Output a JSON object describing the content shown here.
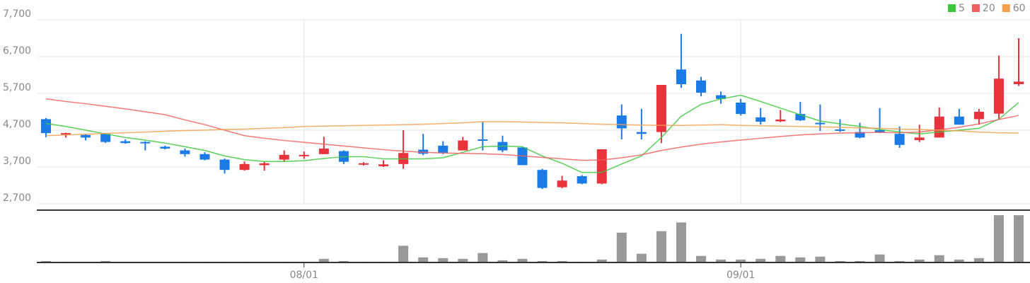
{
  "chart_data": {
    "type": "candlestick",
    "categories": [
      null,
      null,
      null,
      null,
      null,
      null,
      null,
      null,
      null,
      null,
      null,
      null,
      null,
      "08/01",
      null,
      null,
      null,
      null,
      null,
      null,
      null,
      null,
      null,
      null,
      null,
      null,
      null,
      null,
      null,
      null,
      null,
      null,
      null,
      null,
      null,
      "09/01",
      null,
      null,
      null,
      null,
      null,
      null,
      null,
      null,
      null,
      null,
      null,
      null,
      null,
      null
    ],
    "open": [
      5000,
      4580,
      4570,
      4600,
      4400,
      4380,
      4250,
      4150,
      4050,
      3900,
      3620,
      3750,
      3900,
      4000,
      4050,
      4130,
      3770,
      3720,
      3780,
      4170,
      4280,
      4150,
      4450,
      4380,
      4230,
      3620,
      3150,
      3450,
      3250,
      5100,
      4650,
      4650,
      6350,
      6050,
      5650,
      5450,
      5050,
      4940,
      5140,
      4900,
      4720,
      4650,
      4700,
      4600,
      4430,
      4500,
      5070,
      5000,
      5150,
      5950
    ],
    "high": [
      5030,
      4630,
      4600,
      4620,
      4450,
      4400,
      4280,
      4200,
      4100,
      3930,
      3850,
      3850,
      4150,
      4120,
      4520,
      4150,
      3830,
      3880,
      4700,
      4600,
      4400,
      4520,
      4930,
      4550,
      4250,
      3650,
      3460,
      3480,
      4180,
      5400,
      5280,
      5930,
      7320,
      6150,
      5750,
      5550,
      5300,
      5250,
      5470,
      5400,
      5000,
      4900,
      5300,
      4800,
      4850,
      5320,
      5280,
      5280,
      6730,
      7200
    ],
    "low": [
      4510,
      4500,
      4420,
      4350,
      4330,
      4150,
      4180,
      3980,
      3880,
      3520,
      3600,
      3600,
      3850,
      3920,
      4050,
      3780,
      3740,
      3700,
      3650,
      4020,
      4050,
      4150,
      4150,
      4100,
      3750,
      3100,
      3120,
      3230,
      3230,
      4450,
      4450,
      4350,
      5850,
      5620,
      5420,
      5100,
      4850,
      4920,
      4950,
      4680,
      4650,
      4480,
      4620,
      4220,
      4380,
      4500,
      4850,
      4850,
      4980,
      5900
    ],
    "close": [
      4620,
      4620,
      4500,
      4380,
      4350,
      4350,
      4200,
      4050,
      3900,
      3620,
      3780,
      3800,
      4030,
      4030,
      4200,
      3840,
      3800,
      3770,
      4080,
      4060,
      4080,
      4420,
      4420,
      4150,
      3750,
      3130,
      3330,
      3250,
      4180,
      4750,
      4600,
      5930,
      5950,
      5720,
      5550,
      5140,
      4930,
      4990,
      4970,
      4880,
      4700,
      4500,
      4650,
      4300,
      4500,
      5070,
      4850,
      5200,
      6100,
      6020
    ],
    "up_color": "#e8323c",
    "down_color": "#1a7be6",
    "series": [
      {
        "name": "5",
        "color": "#3cc83c",
        "values": [
          4880,
          4800,
          4700,
          4600,
          4500,
          4430,
          4350,
          4250,
          4150,
          4000,
          3900,
          3850,
          3850,
          3870,
          3930,
          3980,
          3980,
          3920,
          3920,
          3920,
          3950,
          4100,
          4250,
          4270,
          4250,
          4000,
          3800,
          3550,
          3550,
          3780,
          4000,
          4500,
          5080,
          5400,
          5550,
          5650,
          5480,
          5300,
          5120,
          4950,
          4870,
          4800,
          4720,
          4650,
          4600,
          4650,
          4700,
          4750,
          5000,
          5450
        ]
      },
      {
        "name": "20",
        "color": "#f06060",
        "values": [
          5550,
          5480,
          5420,
          5350,
          5280,
          5200,
          5120,
          4980,
          4850,
          4700,
          4550,
          4480,
          4420,
          4370,
          4320,
          4270,
          4220,
          4170,
          4130,
          4100,
          4080,
          4070,
          4060,
          4040,
          4000,
          3960,
          3920,
          3880,
          3890,
          3950,
          4030,
          4150,
          4240,
          4320,
          4380,
          4430,
          4480,
          4530,
          4570,
          4600,
          4620,
          4630,
          4640,
          4630,
          4650,
          4710,
          4780,
          4870,
          4990,
          5100
        ]
      },
      {
        "name": "60",
        "color": "#f5a050",
        "values": [
          4550,
          4570,
          4590,
          4610,
          4630,
          4650,
          4670,
          4690,
          4700,
          4720,
          4730,
          4750,
          4770,
          4800,
          4810,
          4820,
          4830,
          4840,
          4850,
          4860,
          4880,
          4900,
          4930,
          4930,
          4920,
          4910,
          4900,
          4880,
          4860,
          4850,
          4840,
          4830,
          4830,
          4840,
          4850,
          4830,
          4820,
          4810,
          4800,
          4790,
          4780,
          4760,
          4750,
          4730,
          4720,
          4700,
          4680,
          4650,
          4630,
          4620
        ]
      }
    ],
    "ylim": [
      2700,
      7700
    ],
    "yticks": [
      {
        "value": 2700,
        "label": "2,700"
      },
      {
        "value": 3700,
        "label": "3,700"
      },
      {
        "value": 4700,
        "label": "4,700"
      },
      {
        "value": 5700,
        "label": "5,700"
      },
      {
        "value": 6700,
        "label": "6,700"
      },
      {
        "value": 7700,
        "label": "7,700"
      }
    ],
    "grid": true,
    "volume": {
      "color": "#999999",
      "ylim": [
        0,
        70
      ],
      "values": [
        2,
        1,
        0,
        2,
        0,
        0,
        0,
        1,
        1,
        1,
        1,
        0,
        1,
        1,
        5,
        2,
        1,
        1,
        23,
        7,
        6,
        5,
        13,
        3,
        5,
        2,
        2,
        1,
        4,
        41,
        12,
        43,
        55,
        9,
        4,
        4,
        5,
        9,
        7,
        8,
        2,
        2,
        11,
        2,
        4,
        10,
        4,
        6,
        65,
        65
      ]
    },
    "legend": "top-right"
  }
}
